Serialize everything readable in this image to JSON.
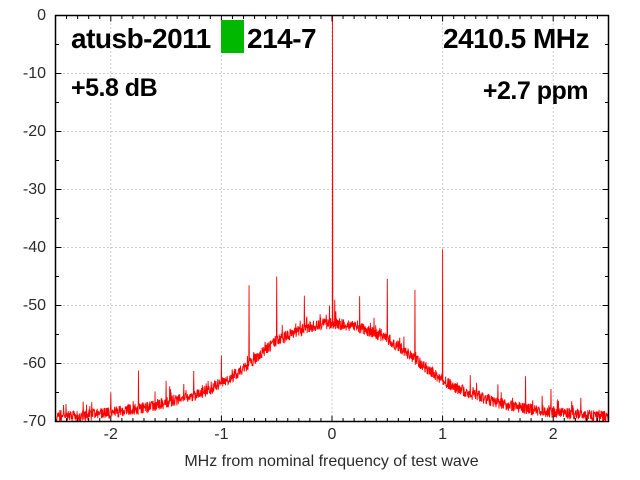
{
  "header": {
    "title_prefix": "atusb-2011",
    "title_suffix": "214-7",
    "marker_color": "#00b800",
    "frequency": "2410.5 MHz",
    "gain": "+5.8 dB",
    "ppm_offset": "+2.7 ppm"
  },
  "chart_data": {
    "type": "line",
    "title": "atusb-2011[marker]214-7",
    "xlabel": "MHz from nominal frequency of test wave",
    "ylabel": "",
    "xlim": [
      -2.5,
      2.5
    ],
    "ylim": [
      -70,
      0
    ],
    "x_major_ticks": [
      -2,
      -1,
      0,
      1,
      2
    ],
    "x_minor_step": 0.1,
    "y_major_ticks": [
      0,
      -10,
      -20,
      -30,
      -40,
      -50,
      -60,
      -70
    ],
    "y_minor_step": 5,
    "grid": "dotted",
    "grid_color": "#9a9a9a",
    "border_color": "#000000",
    "trace_color": "#ff0000",
    "noise_db_peak_to_peak": 2.0,
    "series": [
      {
        "name": "spectrum",
        "envelope_db": [
          [
            -2.5,
            -69.3
          ],
          [
            -2.25,
            -69.0
          ],
          [
            -2.0,
            -68.5
          ],
          [
            -1.75,
            -67.8
          ],
          [
            -1.5,
            -66.8
          ],
          [
            -1.25,
            -65.5
          ],
          [
            -1.1,
            -64.5
          ],
          [
            -1.0,
            -63.3
          ],
          [
            -0.9,
            -62.2
          ],
          [
            -0.8,
            -60.8
          ],
          [
            -0.7,
            -59.2
          ],
          [
            -0.6,
            -57.6
          ],
          [
            -0.5,
            -56.2
          ],
          [
            -0.4,
            -55.1
          ],
          [
            -0.3,
            -54.3
          ],
          [
            -0.2,
            -53.7
          ],
          [
            -0.1,
            -53.3
          ],
          [
            0.0,
            -53.1
          ],
          [
            0.1,
            -53.3
          ],
          [
            0.2,
            -53.6
          ],
          [
            0.3,
            -54.1
          ],
          [
            0.4,
            -54.9
          ],
          [
            0.5,
            -55.8
          ],
          [
            0.6,
            -57.0
          ],
          [
            0.7,
            -58.5
          ],
          [
            0.8,
            -60.0
          ],
          [
            0.9,
            -61.5
          ],
          [
            1.0,
            -62.8
          ],
          [
            1.1,
            -64.0
          ],
          [
            1.25,
            -65.2
          ],
          [
            1.5,
            -66.8
          ],
          [
            1.75,
            -67.8
          ],
          [
            2.0,
            -68.4
          ],
          [
            2.25,
            -68.8
          ],
          [
            2.5,
            -69.2
          ]
        ],
        "spikes_db": [
          [
            -2.25,
            -66.6
          ],
          [
            -2.0,
            -65.0
          ],
          [
            -1.75,
            -61.2
          ],
          [
            -1.6,
            -64.8
          ],
          [
            -1.5,
            -63.0
          ],
          [
            -1.25,
            -61.3
          ],
          [
            -1.0,
            -58.6
          ],
          [
            -0.75,
            -46.5
          ],
          [
            -0.5,
            -45.0
          ],
          [
            -0.25,
            -48.3
          ],
          [
            -0.052,
            -51.6
          ],
          [
            -0.022,
            -50.0
          ],
          [
            0.005,
            0.0
          ],
          [
            0.025,
            -49.0
          ],
          [
            0.068,
            -52.2
          ],
          [
            0.25,
            -48.4
          ],
          [
            0.5,
            -45.4
          ],
          [
            0.75,
            -47.3
          ],
          [
            1.0,
            -40.3
          ],
          [
            1.25,
            -62.0
          ],
          [
            1.5,
            -63.6
          ],
          [
            1.75,
            -62.2
          ],
          [
            1.98,
            -64.4
          ],
          [
            2.25,
            -65.9
          ]
        ]
      }
    ]
  }
}
